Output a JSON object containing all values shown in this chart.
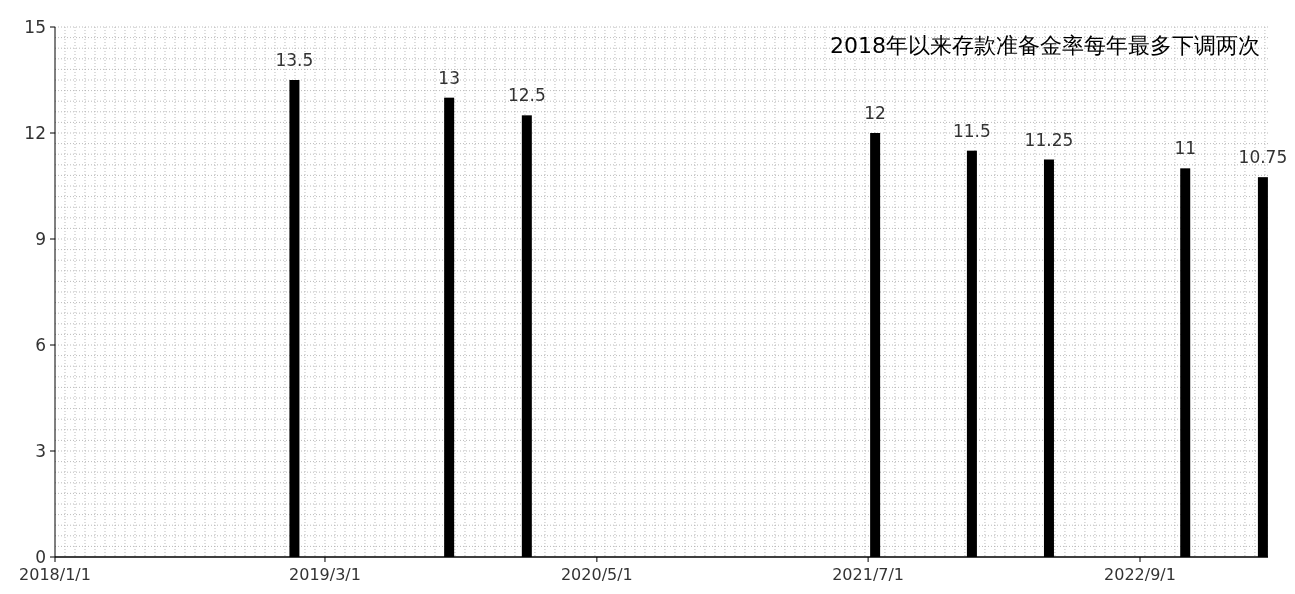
{
  "chart_data": {
    "type": "bar",
    "title": "2018年以来存款准备金率每年最多下调两次",
    "x": [
      "2019-01-12",
      "2019-09-12",
      "2020-01-12",
      "2021-07-12",
      "2021-12-11",
      "2022-04-11",
      "2022-11-11",
      "2023-03-13"
    ],
    "values": [
      13.5,
      13,
      12.5,
      12,
      11.5,
      11.25,
      11,
      10.75
    ],
    "color": "#000000",
    "data_labels": true,
    "xlim": [
      "2018-01-01",
      "2023-03-21"
    ],
    "xticks": [
      {
        "value": "2018-01-01",
        "label": "2018/1/1"
      },
      {
        "value": "2019-03-01",
        "label": "2019/3/1"
      },
      {
        "value": "2020-05-01",
        "label": "2020/5/1"
      },
      {
        "value": "2021-07-01",
        "label": "2021/7/1"
      },
      {
        "value": "2022-09-01",
        "label": "2022/9/1"
      }
    ],
    "ylim": [
      0,
      15
    ],
    "yticks": [
      0,
      3,
      6,
      9,
      12,
      15
    ],
    "grid": true
  }
}
